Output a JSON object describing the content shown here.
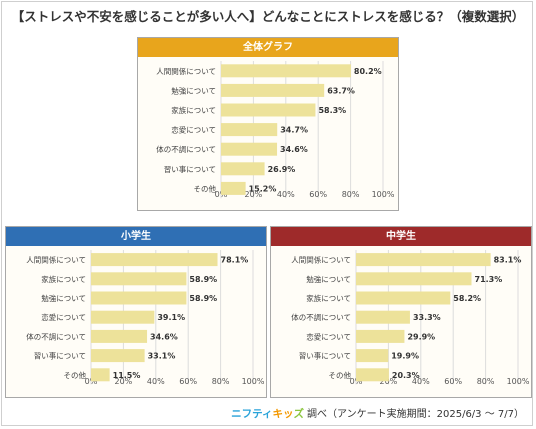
{
  "page_title": "【ストレスや不安を感じることが多い人へ】どんなことにストレスを感じる？（複数選択）",
  "footer": {
    "logo_part1": "ニフティ",
    "logo_part2": "キッ",
    "logo_part3": "ズ",
    "text": "調べ（アンケート実施期間：2025/6/3 ～ 7/7）"
  },
  "colors": {
    "bar": "#ede29a",
    "grid": "#dcdcdc",
    "header_all": "#e8a51c",
    "header_elem": "#2f6fb4",
    "header_mid": "#9e2a2a"
  },
  "chart_data": [
    {
      "type": "bar",
      "orientation": "horizontal",
      "title": "全体グラフ",
      "categories": [
        "人間関係について",
        "勉強について",
        "家族について",
        "恋愛について",
        "体の不調について",
        "習い事について",
        "その他"
      ],
      "values": [
        80.2,
        63.7,
        58.3,
        34.7,
        34.6,
        26.9,
        15.2
      ],
      "value_labels": [
        "80.2%",
        "63.7%",
        "58.3%",
        "34.7%",
        "34.6%",
        "26.9%",
        "15.2%"
      ],
      "xticks": [
        "0%",
        "20%",
        "40%",
        "60%",
        "80%",
        "100%"
      ],
      "xlim": [
        0,
        100
      ],
      "grid": true
    },
    {
      "type": "bar",
      "orientation": "horizontal",
      "title": "小学生",
      "categories": [
        "人間関係について",
        "家族について",
        "勉強について",
        "恋愛について",
        "体の不調について",
        "習い事について",
        "その他"
      ],
      "values": [
        78.1,
        58.9,
        58.9,
        39.1,
        34.6,
        33.1,
        11.5
      ],
      "value_labels": [
        "78.1%",
        "58.9%",
        "58.9%",
        "39.1%",
        "34.6%",
        "33.1%",
        "11.5%"
      ],
      "xticks": [
        "0%",
        "20%",
        "40%",
        "60%",
        "80%",
        "100%"
      ],
      "xlim": [
        0,
        100
      ],
      "grid": true
    },
    {
      "type": "bar",
      "orientation": "horizontal",
      "title": "中学生",
      "categories": [
        "人間関係について",
        "勉強について",
        "家族について",
        "体の不調について",
        "恋愛について",
        "習い事について",
        "その他"
      ],
      "values": [
        83.1,
        71.3,
        58.2,
        33.3,
        29.9,
        19.9,
        20.3
      ],
      "value_labels": [
        "83.1%",
        "71.3%",
        "58.2%",
        "33.3%",
        "29.9%",
        "19.9%",
        "20.3%"
      ],
      "xticks": [
        "0%",
        "20%",
        "40%",
        "60%",
        "80%",
        "100%"
      ],
      "xlim": [
        0,
        100
      ],
      "grid": true
    }
  ]
}
